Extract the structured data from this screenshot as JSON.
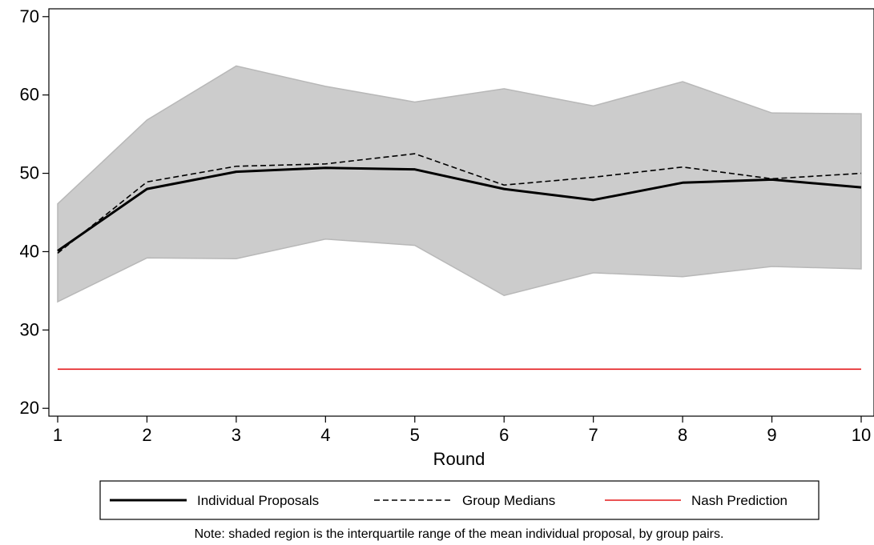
{
  "chart_data": {
    "type": "line",
    "xlabel": "Round",
    "ylabel": "",
    "xlim": [
      1,
      10
    ],
    "ylim": [
      19,
      71
    ],
    "x_ticks": [
      1,
      2,
      3,
      4,
      5,
      6,
      7,
      8,
      9,
      10
    ],
    "y_ticks": [
      20,
      30,
      40,
      50,
      60,
      70
    ],
    "grid": false,
    "legend_position": "bottom",
    "x": [
      1,
      2,
      3,
      4,
      5,
      6,
      7,
      8,
      9,
      10
    ],
    "band": {
      "lower": [
        33.6,
        39.2,
        39.1,
        41.6,
        40.8,
        34.4,
        37.3,
        36.8,
        38.1,
        37.8
      ],
      "upper": [
        46.1,
        56.8,
        63.7,
        61.1,
        59.1,
        60.8,
        58.6,
        61.7,
        57.7,
        57.6
      ],
      "color": "#cccccc"
    },
    "series": [
      {
        "name": "Individual Proposals",
        "style": "solid",
        "color": "#000000",
        "values": [
          40.1,
          48.0,
          50.2,
          50.7,
          50.5,
          48.0,
          46.6,
          48.8,
          49.2,
          48.2
        ]
      },
      {
        "name": "Group Medians",
        "style": "dashed",
        "color": "#000000",
        "values": [
          39.8,
          48.9,
          50.9,
          51.2,
          52.5,
          48.5,
          49.5,
          50.8,
          49.3,
          50.0
        ]
      },
      {
        "name": "Nash Prediction",
        "style": "solid",
        "color": "#e31a1c",
        "values": [
          25,
          25,
          25,
          25,
          25,
          25,
          25,
          25,
          25,
          25
        ]
      }
    ],
    "note": "Note: shaded region is the interquartile range of the mean individual proposal, by group pairs."
  }
}
